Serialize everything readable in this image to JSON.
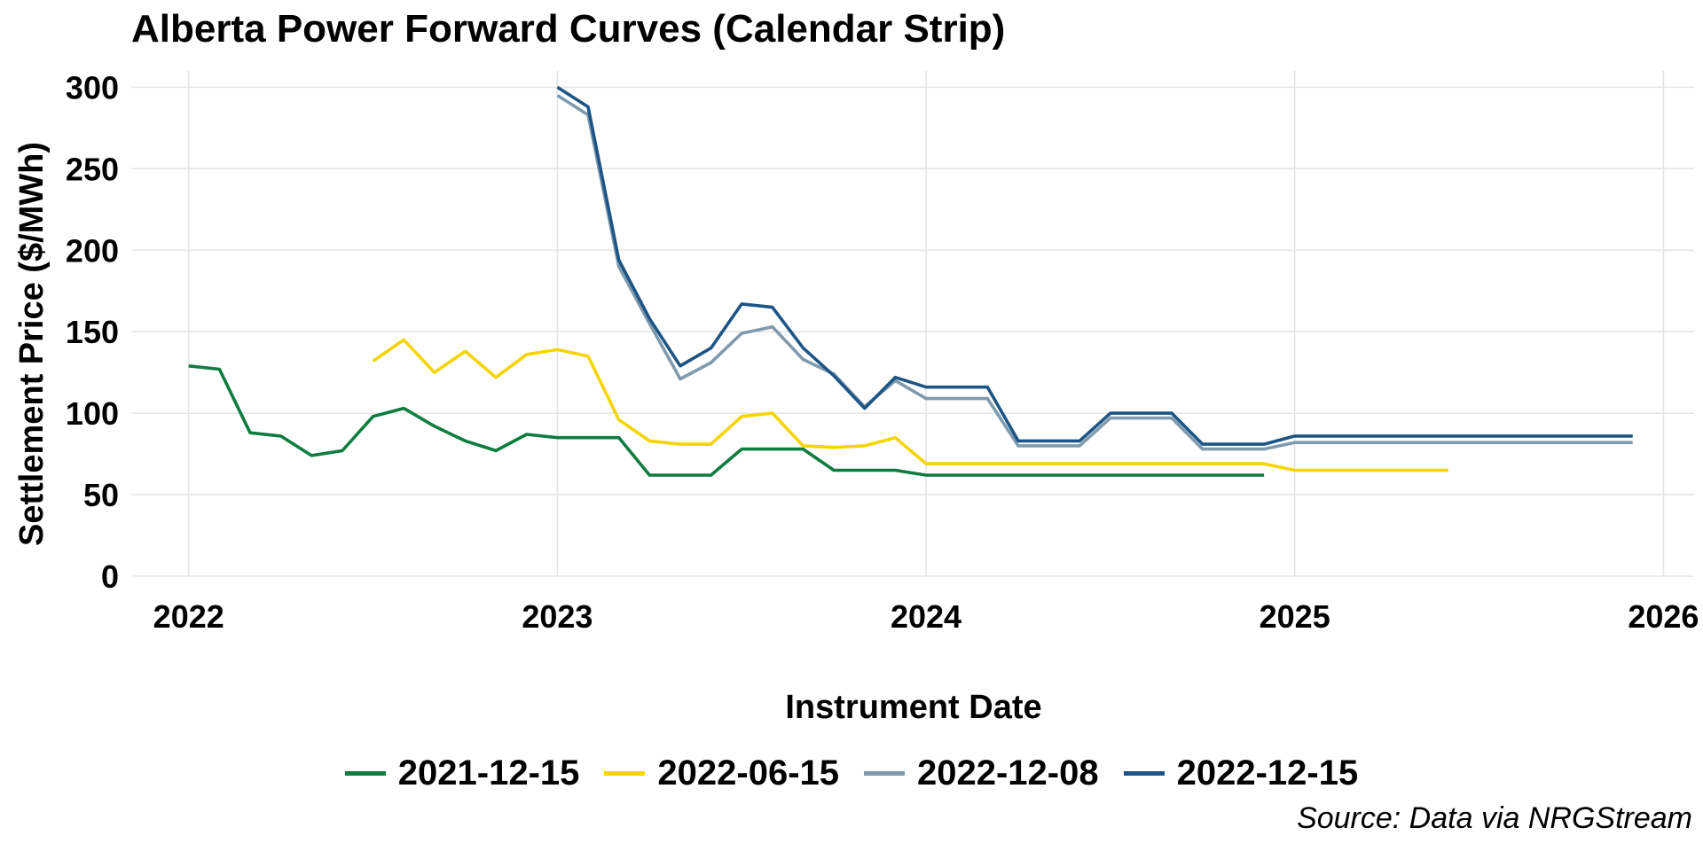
{
  "chart_data": {
    "type": "line",
    "title": "Alberta Power Forward Curves (Calendar Strip)",
    "xlabel": "Instrument Date",
    "ylabel": "Settlement Price ($/MWh)",
    "ylim": [
      0,
      310
    ],
    "xlim": [
      "2021-11-05",
      "2026-02-01"
    ],
    "yticks": [
      0,
      50,
      100,
      150,
      200,
      250,
      300
    ],
    "xticks": [
      "2022",
      "2023",
      "2024",
      "2025",
      "2026"
    ],
    "grid": true,
    "legend_position": "bottom",
    "source": "Source: Data via NRGStream",
    "series": [
      {
        "name": "2021-12-15",
        "color": "#0e7c3f",
        "x": [
          "2022-01",
          "2022-02",
          "2022-03",
          "2022-04",
          "2022-05",
          "2022-06",
          "2022-07",
          "2022-08",
          "2022-09",
          "2022-10",
          "2022-11",
          "2022-12",
          "2023-01",
          "2023-02",
          "2023-03",
          "2023-04",
          "2023-05",
          "2023-06",
          "2023-07",
          "2023-08",
          "2023-09",
          "2023-10",
          "2023-11",
          "2023-12",
          "2024-01",
          "2024-02",
          "2024-03",
          "2024-04",
          "2024-05",
          "2024-06",
          "2024-07",
          "2024-08",
          "2024-09",
          "2024-10",
          "2024-11",
          "2024-12"
        ],
        "y": [
          129,
          127,
          88,
          86,
          74,
          77,
          98,
          103,
          92,
          83,
          77,
          87,
          85,
          85,
          85,
          62,
          62,
          62,
          78,
          78,
          78,
          65,
          65,
          65,
          62,
          62,
          62,
          62,
          62,
          62,
          62,
          62,
          62,
          62,
          62,
          62
        ]
      },
      {
        "name": "2022-06-15",
        "color": "#f5d400",
        "x": [
          "2022-07",
          "2022-08",
          "2022-09",
          "2022-10",
          "2022-11",
          "2022-12",
          "2023-01",
          "2023-02",
          "2023-03",
          "2023-04",
          "2023-05",
          "2023-06",
          "2023-07",
          "2023-08",
          "2023-09",
          "2023-10",
          "2023-11",
          "2023-12",
          "2024-01",
          "2024-02",
          "2024-03",
          "2024-04",
          "2024-05",
          "2024-06",
          "2024-07",
          "2024-08",
          "2024-09",
          "2024-10",
          "2024-11",
          "2024-12",
          "2025-01",
          "2025-02",
          "2025-03",
          "2025-04",
          "2025-05",
          "2025-06"
        ],
        "y": [
          132,
          145,
          125,
          138,
          122,
          136,
          139,
          135,
          96,
          83,
          81,
          81,
          98,
          100,
          80,
          79,
          80,
          85,
          69,
          69,
          69,
          69,
          69,
          69,
          69,
          69,
          69,
          69,
          69,
          69,
          65,
          65,
          65,
          65,
          65,
          65
        ]
      },
      {
        "name": "2022-12-08",
        "color": "#7f9aae",
        "x": [
          "2023-01",
          "2023-02",
          "2023-03",
          "2023-04",
          "2023-05",
          "2023-06",
          "2023-07",
          "2023-08",
          "2023-09",
          "2023-10",
          "2023-11",
          "2023-12",
          "2024-01",
          "2024-02",
          "2024-03",
          "2024-04",
          "2024-05",
          "2024-06",
          "2024-07",
          "2024-08",
          "2024-09",
          "2024-10",
          "2024-11",
          "2024-12",
          "2025-01",
          "2025-02",
          "2025-03",
          "2025-04",
          "2025-05",
          "2025-06",
          "2025-07",
          "2025-08",
          "2025-09",
          "2025-10",
          "2025-11",
          "2025-12"
        ],
        "y": [
          295,
          283,
          190,
          155,
          121,
          131,
          149,
          153,
          133,
          124,
          104,
          120,
          109,
          109,
          109,
          80,
          80,
          80,
          97,
          97,
          97,
          78,
          78,
          78,
          82,
          82,
          82,
          82,
          82,
          82,
          82,
          82,
          82,
          82,
          82,
          82
        ]
      },
      {
        "name": "2022-12-15",
        "color": "#1c5585",
        "x": [
          "2023-01",
          "2023-02",
          "2023-03",
          "2023-04",
          "2023-05",
          "2023-06",
          "2023-07",
          "2023-08",
          "2023-09",
          "2023-10",
          "2023-11",
          "2023-12",
          "2024-01",
          "2024-02",
          "2024-03",
          "2024-04",
          "2024-05",
          "2024-06",
          "2024-07",
          "2024-08",
          "2024-09",
          "2024-10",
          "2024-11",
          "2024-12",
          "2025-01",
          "2025-02",
          "2025-03",
          "2025-04",
          "2025-05",
          "2025-06",
          "2025-07",
          "2025-08",
          "2025-09",
          "2025-10",
          "2025-11",
          "2025-12"
        ],
        "y": [
          300,
          288,
          194,
          158,
          129,
          140,
          167,
          165,
          140,
          123,
          103,
          122,
          116,
          116,
          116,
          83,
          83,
          83,
          100,
          100,
          100,
          81,
          81,
          81,
          86,
          86,
          86,
          86,
          86,
          86,
          86,
          86,
          86,
          86,
          86,
          86
        ]
      }
    ]
  }
}
